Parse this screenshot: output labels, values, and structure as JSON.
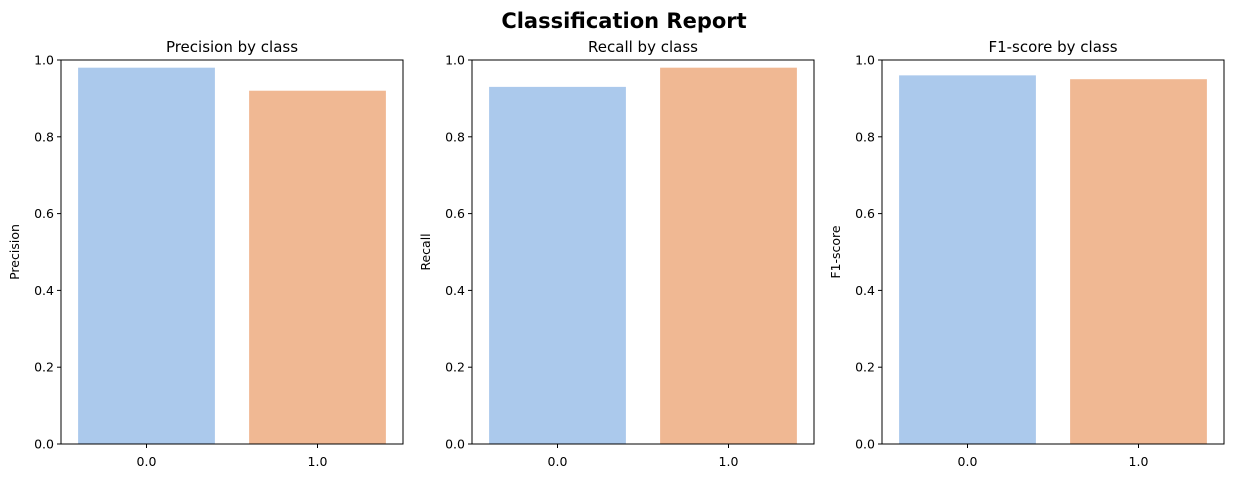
{
  "title": "Classification Report",
  "chart_data": [
    {
      "type": "bar",
      "title": "Precision by class",
      "xlabel": "",
      "ylabel": "Precision",
      "categories": [
        "0.0",
        "1.0"
      ],
      "values": [
        0.98,
        0.92
      ],
      "ylim": [
        0,
        1
      ],
      "yticks": [
        "0.0",
        "0.2",
        "0.4",
        "0.6",
        "0.8",
        "1.0"
      ],
      "colors": [
        "#abc9ec",
        "#f0b893"
      ],
      "grid": false
    },
    {
      "type": "bar",
      "title": "Recall by class",
      "xlabel": "",
      "ylabel": "Recall",
      "categories": [
        "0.0",
        "1.0"
      ],
      "values": [
        0.93,
        0.98
      ],
      "ylim": [
        0,
        1
      ],
      "yticks": [
        "0.0",
        "0.2",
        "0.4",
        "0.6",
        "0.8",
        "1.0"
      ],
      "colors": [
        "#abc9ec",
        "#f0b893"
      ],
      "grid": false
    },
    {
      "type": "bar",
      "title": "F1-score by class",
      "xlabel": "",
      "ylabel": "F1-score",
      "categories": [
        "0.0",
        "1.0"
      ],
      "values": [
        0.96,
        0.95
      ],
      "ylim": [
        0,
        1
      ],
      "yticks": [
        "0.0",
        "0.2",
        "0.4",
        "0.6",
        "0.8",
        "1.0"
      ],
      "colors": [
        "#abc9ec",
        "#f0b893"
      ],
      "grid": false
    }
  ]
}
